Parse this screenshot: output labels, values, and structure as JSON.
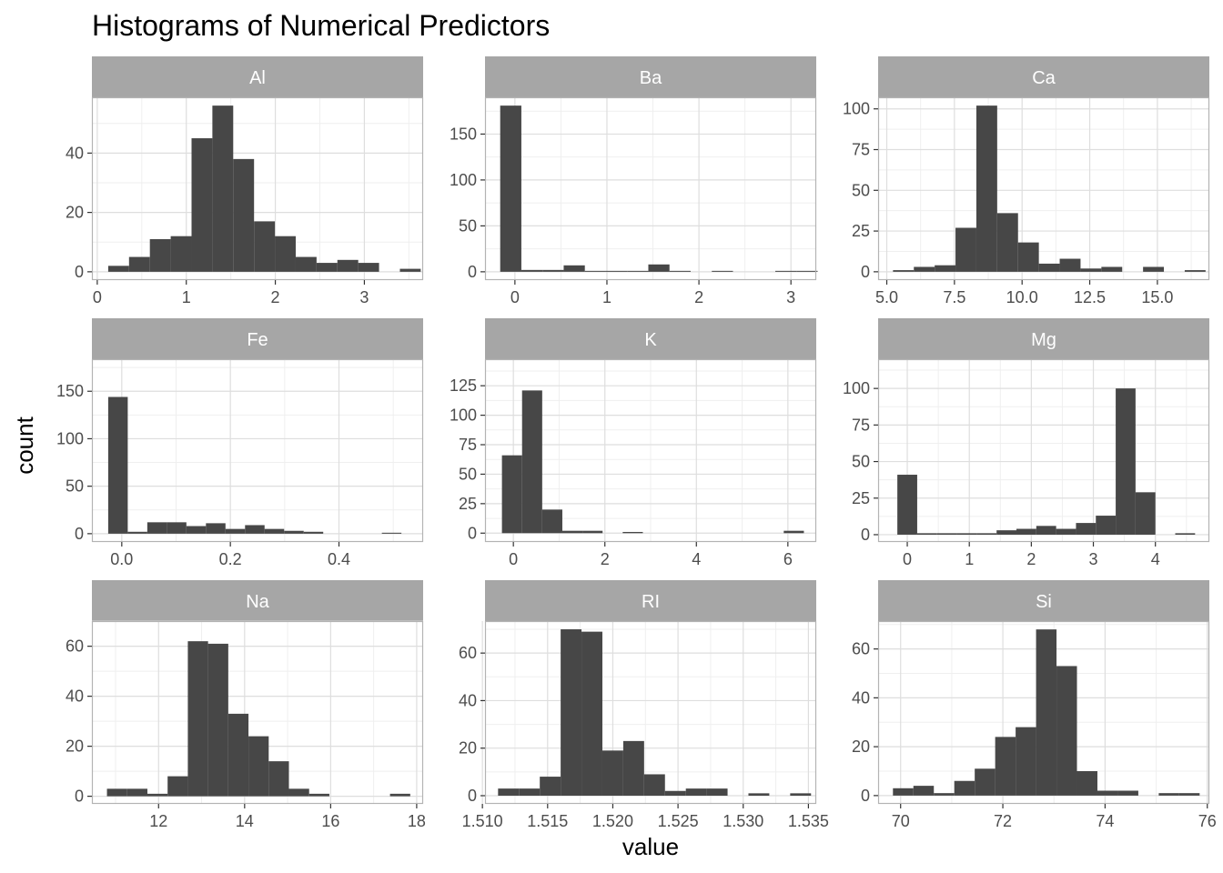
{
  "chart_data": {
    "type": "bar",
    "title": "Histograms of Numerical Predictors",
    "xlabel": "value",
    "ylabel": "count",
    "colors": {
      "bar": "#474747",
      "strip": "#a6a6a6",
      "grid_major": "#dedede",
      "grid_minor": "#efefef",
      "border": "#b3b3b3"
    },
    "facets": [
      {
        "name": "Al",
        "xlim": [
          -0.06,
          3.66
        ],
        "ylim": [
          -2.8,
          58.8
        ],
        "xticks": [
          0,
          1,
          2,
          3
        ],
        "xtick_labels": [
          "0",
          "1",
          "2",
          "3"
        ],
        "yticks": [
          0,
          20,
          40
        ],
        "ytick_labels": [
          "0",
          "20",
          "40"
        ],
        "bins": [
          {
            "x0": 0.123,
            "x1": 0.357,
            "count": 2
          },
          {
            "x0": 0.357,
            "x1": 0.591,
            "count": 5
          },
          {
            "x0": 0.591,
            "x1": 0.825,
            "count": 11
          },
          {
            "x0": 0.825,
            "x1": 1.059,
            "count": 12
          },
          {
            "x0": 1.059,
            "x1": 1.293,
            "count": 45
          },
          {
            "x0": 1.293,
            "x1": 1.527,
            "count": 56
          },
          {
            "x0": 1.527,
            "x1": 1.761,
            "count": 38
          },
          {
            "x0": 1.761,
            "x1": 1.995,
            "count": 17
          },
          {
            "x0": 1.995,
            "x1": 2.229,
            "count": 12
          },
          {
            "x0": 2.229,
            "x1": 2.463,
            "count": 5
          },
          {
            "x0": 2.463,
            "x1": 2.697,
            "count": 3
          },
          {
            "x0": 2.697,
            "x1": 2.931,
            "count": 4
          },
          {
            "x0": 2.931,
            "x1": 3.165,
            "count": 3
          },
          {
            "x0": 3.165,
            "x1": 3.399,
            "count": 0
          },
          {
            "x0": 3.399,
            "x1": 3.633,
            "count": 1
          }
        ]
      },
      {
        "name": "Ba",
        "xlim": [
          -0.325,
          3.275
        ],
        "ylim": [
          -9.05,
          190.05
        ],
        "xticks": [
          0,
          1,
          2,
          3
        ],
        "xtick_labels": [
          "0",
          "1",
          "2",
          "3"
        ],
        "yticks": [
          0,
          50,
          100,
          150
        ],
        "ytick_labels": [
          "0",
          "50",
          "100",
          "150"
        ],
        "bins": [
          {
            "x0": -0.16,
            "x1": 0.07,
            "count": 181
          },
          {
            "x0": 0.07,
            "x1": 0.3,
            "count": 2
          },
          {
            "x0": 0.3,
            "x1": 0.53,
            "count": 2
          },
          {
            "x0": 0.53,
            "x1": 0.76,
            "count": 7
          },
          {
            "x0": 0.76,
            "x1": 0.99,
            "count": 1
          },
          {
            "x0": 0.99,
            "x1": 1.22,
            "count": 1
          },
          {
            "x0": 1.22,
            "x1": 1.45,
            "count": 1
          },
          {
            "x0": 1.45,
            "x1": 1.68,
            "count": 8
          },
          {
            "x0": 1.68,
            "x1": 1.91,
            "count": 1
          },
          {
            "x0": 1.91,
            "x1": 2.14,
            "count": 0
          },
          {
            "x0": 2.14,
            "x1": 2.37,
            "count": 1
          },
          {
            "x0": 2.37,
            "x1": 2.6,
            "count": 0
          },
          {
            "x0": 2.6,
            "x1": 2.83,
            "count": 0
          },
          {
            "x0": 2.83,
            "x1": 3.06,
            "count": 1
          },
          {
            "x0": 3.06,
            "x1": 3.29,
            "count": 1
          }
        ]
      },
      {
        "name": "Ca",
        "xlim": [
          4.68,
          16.92
        ],
        "ylim": [
          -5.1,
          107.1
        ],
        "xticks": [
          5,
          7.5,
          10,
          12.5,
          15
        ],
        "xtick_labels": [
          "5.0",
          "7.5",
          "10.0",
          "12.5",
          "15.0"
        ],
        "yticks": [
          0,
          25,
          50,
          75,
          100
        ],
        "ytick_labels": [
          "0",
          "25",
          "50",
          "75",
          "100"
        ],
        "bins": [
          {
            "x0": 5.23,
            "x1": 6.0,
            "count": 1
          },
          {
            "x0": 6.0,
            "x1": 6.77,
            "count": 3
          },
          {
            "x0": 6.77,
            "x1": 7.54,
            "count": 4
          },
          {
            "x0": 7.54,
            "x1": 8.31,
            "count": 27
          },
          {
            "x0": 8.31,
            "x1": 9.08,
            "count": 102
          },
          {
            "x0": 9.08,
            "x1": 9.85,
            "count": 36
          },
          {
            "x0": 9.85,
            "x1": 10.62,
            "count": 18
          },
          {
            "x0": 10.62,
            "x1": 11.39,
            "count": 5
          },
          {
            "x0": 11.39,
            "x1": 12.16,
            "count": 8
          },
          {
            "x0": 12.16,
            "x1": 12.93,
            "count": 2
          },
          {
            "x0": 12.93,
            "x1": 13.7,
            "count": 3
          },
          {
            "x0": 13.7,
            "x1": 14.47,
            "count": 0
          },
          {
            "x0": 14.47,
            "x1": 15.24,
            "count": 3
          },
          {
            "x0": 15.24,
            "x1": 16.01,
            "count": 0
          },
          {
            "x0": 16.01,
            "x1": 16.78,
            "count": 1
          }
        ]
      },
      {
        "name": "Fe",
        "xlim": [
          -0.055,
          0.555
        ],
        "ylim": [
          -8.75,
          183.75
        ],
        "xticks": [
          0,
          0.2,
          0.4
        ],
        "xtick_labels": [
          "0.0",
          "0.2",
          "0.4"
        ],
        "yticks": [
          0,
          50,
          100,
          150
        ],
        "ytick_labels": [
          "0",
          "50",
          "100",
          "150"
        ],
        "bins": [
          {
            "x0": -0.025,
            "x1": 0.011,
            "count": 144
          },
          {
            "x0": 0.011,
            "x1": 0.047,
            "count": 2
          },
          {
            "x0": 0.047,
            "x1": 0.083,
            "count": 12
          },
          {
            "x0": 0.083,
            "x1": 0.119,
            "count": 12
          },
          {
            "x0": 0.119,
            "x1": 0.155,
            "count": 8
          },
          {
            "x0": 0.155,
            "x1": 0.191,
            "count": 11
          },
          {
            "x0": 0.191,
            "x1": 0.227,
            "count": 5
          },
          {
            "x0": 0.227,
            "x1": 0.263,
            "count": 9
          },
          {
            "x0": 0.263,
            "x1": 0.299,
            "count": 5
          },
          {
            "x0": 0.299,
            "x1": 0.335,
            "count": 3
          },
          {
            "x0": 0.335,
            "x1": 0.371,
            "count": 2
          },
          {
            "x0": 0.371,
            "x1": 0.407,
            "count": 0
          },
          {
            "x0": 0.407,
            "x1": 0.443,
            "count": 0
          },
          {
            "x0": 0.443,
            "x1": 0.479,
            "count": 0
          },
          {
            "x0": 0.479,
            "x1": 0.515,
            "count": 1
          }
        ]
      },
      {
        "name": "K",
        "xlim": [
          -0.62,
          6.62
        ],
        "ylim": [
          -7.5,
          147.5
        ],
        "xticks": [
          0,
          2,
          4,
          6
        ],
        "xtick_labels": [
          "0",
          "2",
          "4",
          "6"
        ],
        "yticks": [
          0,
          25,
          50,
          75,
          100,
          125
        ],
        "ytick_labels": [
          "0",
          "25",
          "50",
          "75",
          "100",
          "125"
        ],
        "bins": [
          {
            "x0": -0.25,
            "x1": 0.19,
            "count": 66
          },
          {
            "x0": 0.19,
            "x1": 0.63,
            "count": 121
          },
          {
            "x0": 0.63,
            "x1": 1.07,
            "count": 20
          },
          {
            "x0": 1.07,
            "x1": 1.51,
            "count": 2
          },
          {
            "x0": 1.51,
            "x1": 1.95,
            "count": 2
          },
          {
            "x0": 1.95,
            "x1": 2.39,
            "count": 0
          },
          {
            "x0": 2.39,
            "x1": 2.83,
            "count": 1
          },
          {
            "x0": 2.83,
            "x1": 3.27,
            "count": 0
          },
          {
            "x0": 3.27,
            "x1": 3.71,
            "count": 0
          },
          {
            "x0": 3.71,
            "x1": 4.15,
            "count": 0
          },
          {
            "x0": 4.15,
            "x1": 4.59,
            "count": 0
          },
          {
            "x0": 4.59,
            "x1": 5.03,
            "count": 0
          },
          {
            "x0": 5.03,
            "x1": 5.47,
            "count": 0
          },
          {
            "x0": 5.47,
            "x1": 5.91,
            "count": 0
          },
          {
            "x0": 5.91,
            "x1": 6.35,
            "count": 2
          }
        ]
      },
      {
        "name": "Mg",
        "xlim": [
          -0.47,
          4.87
        ],
        "ylim": [
          -5.0,
          120.0
        ],
        "xticks": [
          0,
          1,
          2,
          3,
          4
        ],
        "xtick_labels": [
          "0",
          "1",
          "2",
          "3",
          "4"
        ],
        "yticks": [
          0,
          25,
          50,
          75,
          100
        ],
        "ytick_labels": [
          "0",
          "25",
          "50",
          "75",
          "100"
        ],
        "bins": [
          {
            "x0": -0.16,
            "x1": 0.16,
            "count": 41
          },
          {
            "x0": 0.16,
            "x1": 0.48,
            "count": 1
          },
          {
            "x0": 0.48,
            "x1": 0.8,
            "count": 1
          },
          {
            "x0": 0.8,
            "x1": 1.12,
            "count": 1
          },
          {
            "x0": 1.12,
            "x1": 1.44,
            "count": 1
          },
          {
            "x0": 1.44,
            "x1": 1.76,
            "count": 3
          },
          {
            "x0": 1.76,
            "x1": 2.08,
            "count": 4
          },
          {
            "x0": 2.08,
            "x1": 2.4,
            "count": 6
          },
          {
            "x0": 2.4,
            "x1": 2.72,
            "count": 4
          },
          {
            "x0": 2.72,
            "x1": 3.04,
            "count": 8
          },
          {
            "x0": 3.04,
            "x1": 3.36,
            "count": 13
          },
          {
            "x0": 3.36,
            "x1": 3.68,
            "count": 100
          },
          {
            "x0": 3.68,
            "x1": 4.0,
            "count": 29
          },
          {
            "x0": 4.0,
            "x1": 4.32,
            "count": 0
          },
          {
            "x0": 4.32,
            "x1": 4.64,
            "count": 1
          }
        ]
      },
      {
        "name": "Na",
        "xlim": [
          10.45,
          18.15
        ],
        "ylim": [
          -3.05,
          70.05
        ],
        "xticks": [
          12,
          14,
          16,
          18
        ],
        "xtick_labels": [
          "12",
          "14",
          "16",
          "18"
        ],
        "yticks": [
          0,
          20,
          40,
          60
        ],
        "ytick_labels": [
          "0",
          "20",
          "40",
          "60"
        ],
        "bins": [
          {
            "x0": 10.8,
            "x1": 11.27,
            "count": 3
          },
          {
            "x0": 11.27,
            "x1": 11.74,
            "count": 3
          },
          {
            "x0": 11.74,
            "x1": 12.21,
            "count": 1
          },
          {
            "x0": 12.21,
            "x1": 12.68,
            "count": 8
          },
          {
            "x0": 12.68,
            "x1": 13.15,
            "count": 62
          },
          {
            "x0": 13.15,
            "x1": 13.62,
            "count": 61
          },
          {
            "x0": 13.62,
            "x1": 14.09,
            "count": 33
          },
          {
            "x0": 14.09,
            "x1": 14.56,
            "count": 24
          },
          {
            "x0": 14.56,
            "x1": 15.03,
            "count": 14
          },
          {
            "x0": 15.03,
            "x1": 15.5,
            "count": 3
          },
          {
            "x0": 15.5,
            "x1": 15.97,
            "count": 1
          },
          {
            "x0": 15.97,
            "x1": 16.44,
            "count": 0
          },
          {
            "x0": 16.44,
            "x1": 16.91,
            "count": 0
          },
          {
            "x0": 16.91,
            "x1": 17.38,
            "count": 0
          },
          {
            "x0": 17.38,
            "x1": 17.85,
            "count": 1
          }
        ]
      },
      {
        "name": "RI",
        "xlim": [
          1.5102,
          1.5356
        ],
        "ylim": [
          -3.45,
          73.45
        ],
        "xticks": [
          1.51,
          1.515,
          1.52,
          1.525,
          1.53,
          1.535
        ],
        "xtick_labels": [
          "1.510",
          "1.515",
          "1.520",
          "1.525",
          "1.530",
          "1.535"
        ],
        "yticks": [
          0,
          20,
          40,
          60
        ],
        "ytick_labels": [
          "0",
          "20",
          "40",
          "60"
        ],
        "bins": [
          {
            "x0": 1.5112,
            "x1": 1.5128,
            "count": 3
          },
          {
            "x0": 1.5128,
            "x1": 1.5144,
            "count": 3
          },
          {
            "x0": 1.5144,
            "x1": 1.516,
            "count": 8
          },
          {
            "x0": 1.516,
            "x1": 1.5176,
            "count": 70
          },
          {
            "x0": 1.5176,
            "x1": 1.5192,
            "count": 69
          },
          {
            "x0": 1.5192,
            "x1": 1.5208,
            "count": 19
          },
          {
            "x0": 1.5208,
            "x1": 1.5224,
            "count": 23
          },
          {
            "x0": 1.5224,
            "x1": 1.524,
            "count": 9
          },
          {
            "x0": 1.524,
            "x1": 1.5256,
            "count": 2
          },
          {
            "x0": 1.5256,
            "x1": 1.5272,
            "count": 3
          },
          {
            "x0": 1.5272,
            "x1": 1.5288,
            "count": 3
          },
          {
            "x0": 1.5288,
            "x1": 1.5304,
            "count": 0
          },
          {
            "x0": 1.5304,
            "x1": 1.532,
            "count": 1
          },
          {
            "x0": 1.532,
            "x1": 1.5336,
            "count": 0
          },
          {
            "x0": 1.5336,
            "x1": 1.5352,
            "count": 1
          }
        ]
      },
      {
        "name": "Si",
        "xlim": [
          69.56,
          76.04
        ],
        "ylim": [
          -3.4,
          71.4
        ],
        "xticks": [
          70,
          72,
          74,
          76
        ],
        "xtick_labels": [
          "70",
          "72",
          "74",
          "76"
        ],
        "yticks": [
          0,
          20,
          40,
          60
        ],
        "ytick_labels": [
          "0",
          "20",
          "40",
          "60"
        ],
        "bins": [
          {
            "x0": 69.85,
            "x1": 70.25,
            "count": 3
          },
          {
            "x0": 70.25,
            "x1": 70.65,
            "count": 4
          },
          {
            "x0": 70.65,
            "x1": 71.05,
            "count": 1
          },
          {
            "x0": 71.05,
            "x1": 71.45,
            "count": 6
          },
          {
            "x0": 71.45,
            "x1": 71.85,
            "count": 11
          },
          {
            "x0": 71.85,
            "x1": 72.25,
            "count": 24
          },
          {
            "x0": 72.25,
            "x1": 72.65,
            "count": 28
          },
          {
            "x0": 72.65,
            "x1": 73.05,
            "count": 68
          },
          {
            "x0": 73.05,
            "x1": 73.45,
            "count": 53
          },
          {
            "x0": 73.45,
            "x1": 73.85,
            "count": 10
          },
          {
            "x0": 73.85,
            "x1": 74.25,
            "count": 2
          },
          {
            "x0": 74.25,
            "x1": 74.65,
            "count": 2
          },
          {
            "x0": 74.65,
            "x1": 75.05,
            "count": 0
          },
          {
            "x0": 75.05,
            "x1": 75.45,
            "count": 1
          },
          {
            "x0": 75.45,
            "x1": 75.85,
            "count": 1
          }
        ]
      }
    ]
  }
}
